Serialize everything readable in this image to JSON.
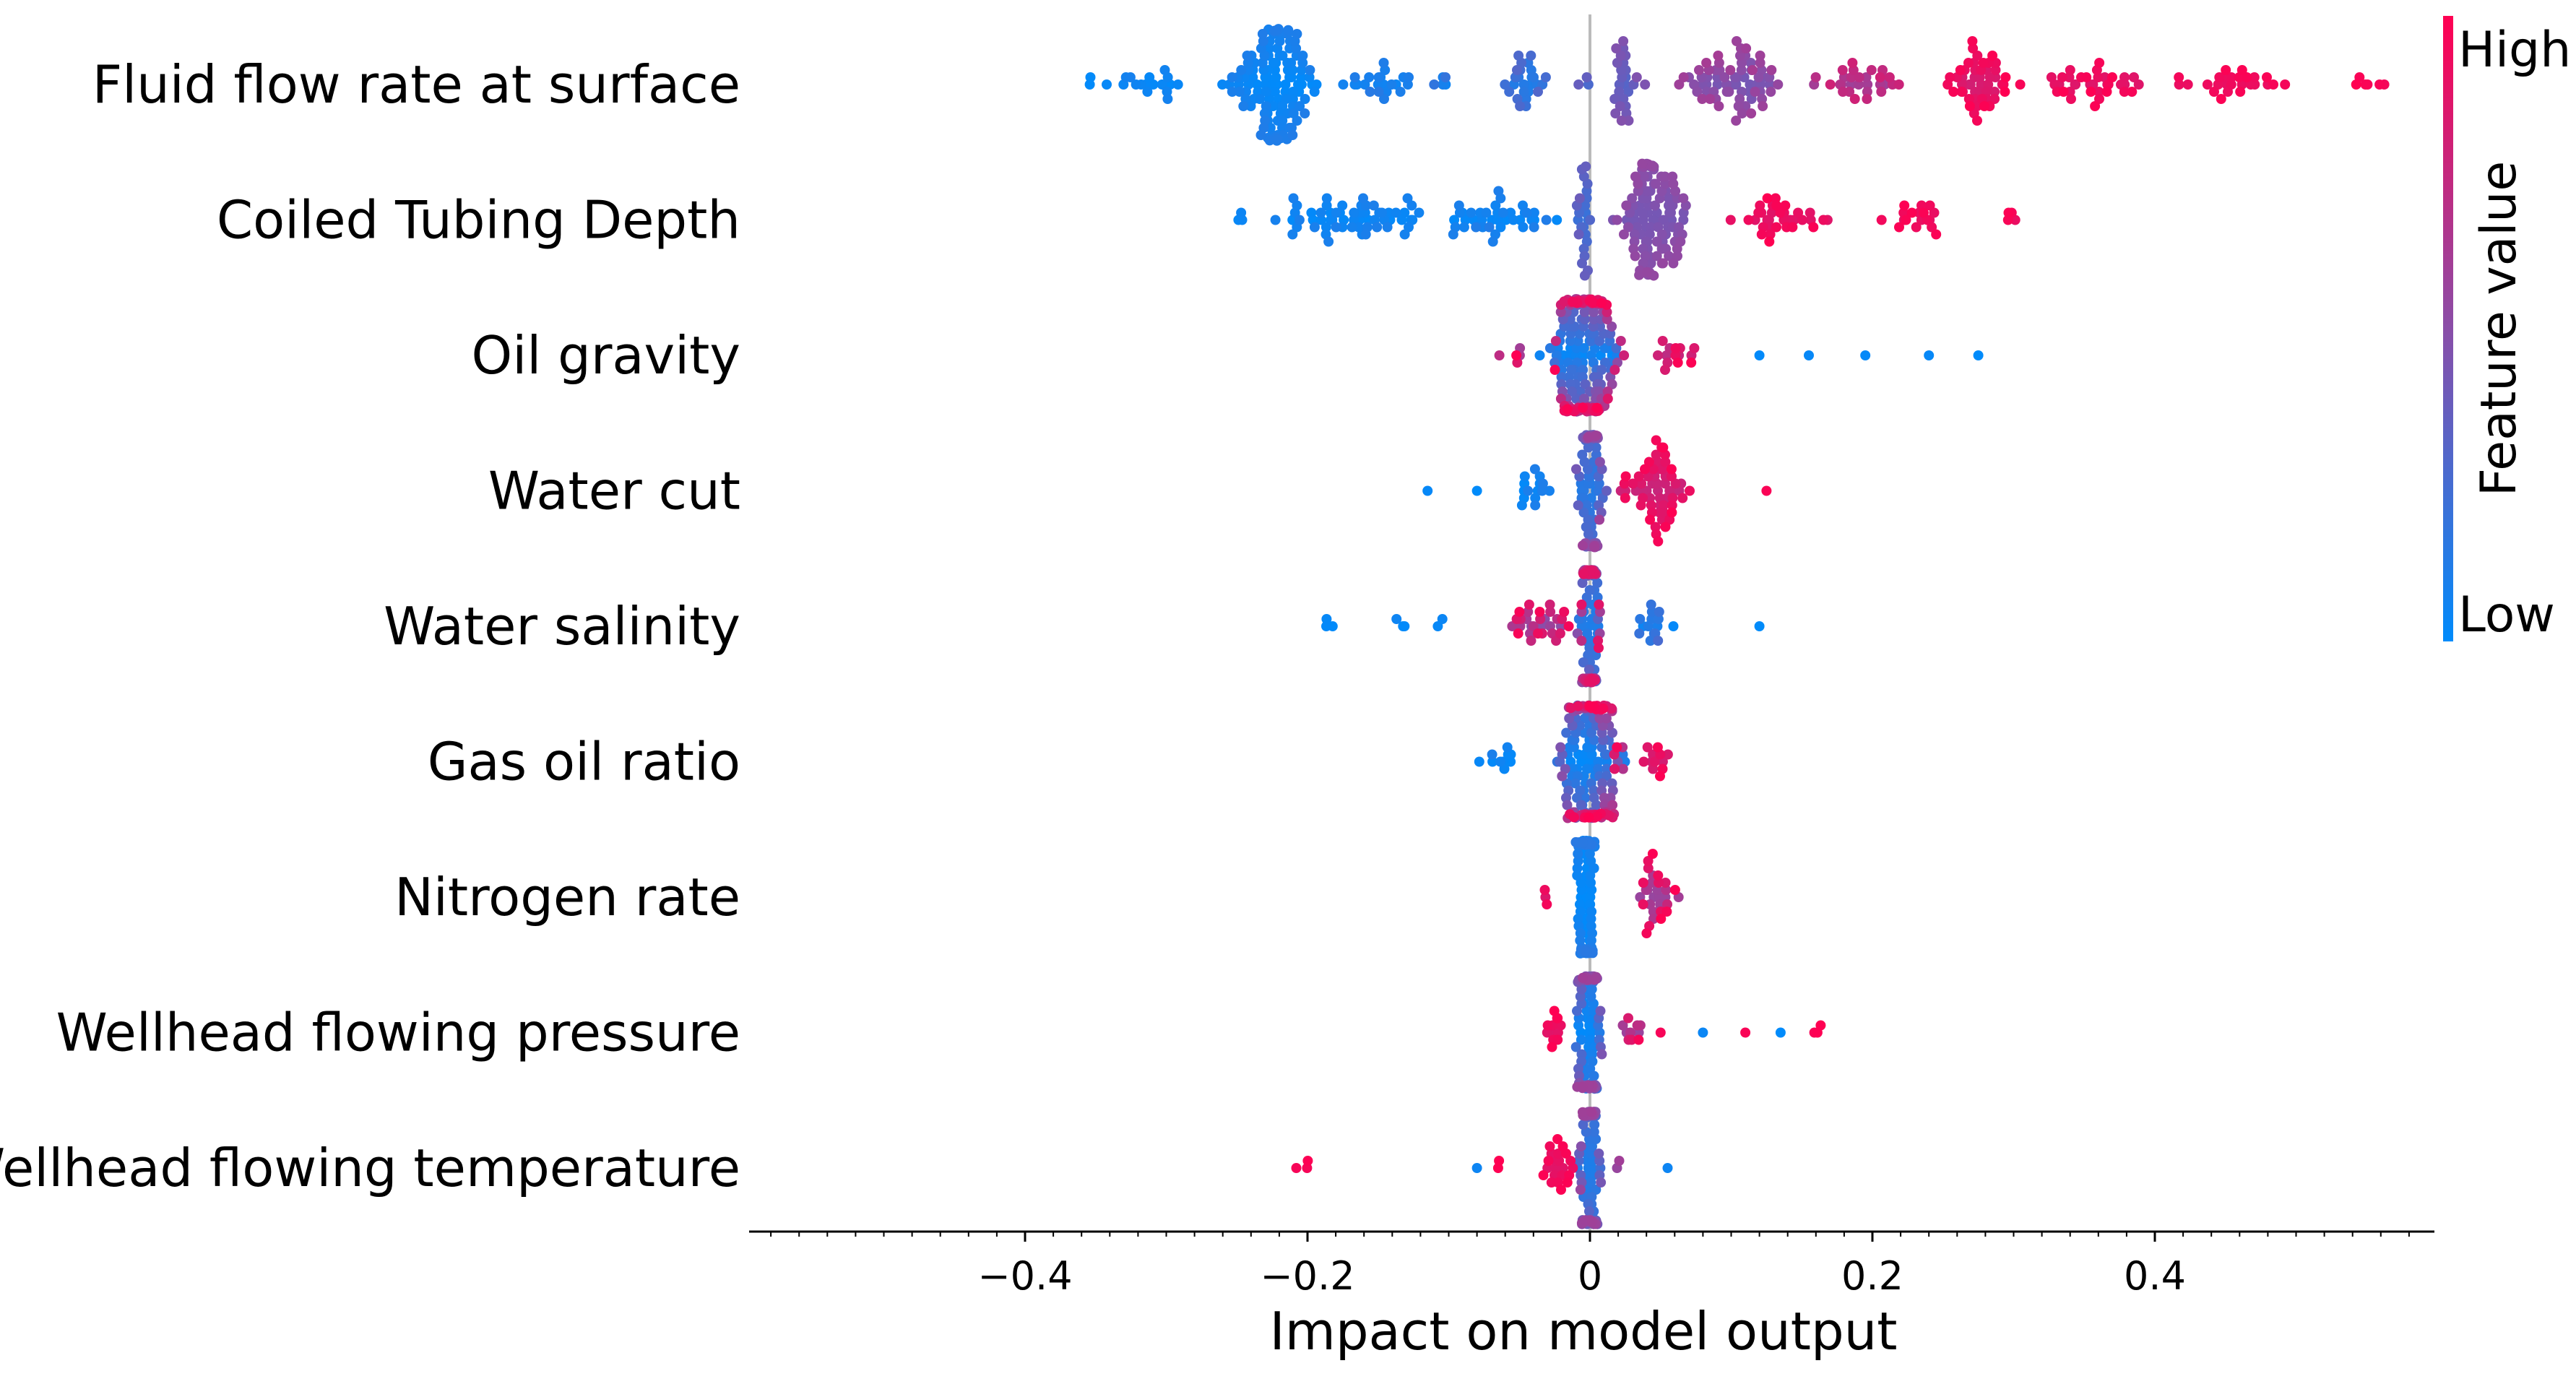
{
  "chart_data": {
    "type": "scatter",
    "subtype": "shap-beeswarm",
    "title": "",
    "xlabel": "Impact on model output",
    "ylabel": "",
    "xlim": [
      -0.6,
      0.6
    ],
    "xticks": [
      {
        "value": -0.4,
        "label": "−0.4"
      },
      {
        "value": -0.2,
        "label": "−0.2"
      },
      {
        "value": 0,
        "label": "0"
      },
      {
        "value": 0.2,
        "label": "0.2"
      },
      {
        "value": 0.4,
        "label": "0.4"
      }
    ],
    "grid": false,
    "zero_line": true,
    "colorbar": {
      "title": "Feature value",
      "high_label": "High",
      "low_label": "Low",
      "high_color": "#ff0052",
      "mid_color": "#8a4ea8",
      "low_color": "#008bfb"
    },
    "features": [
      {
        "name": "Fluid flow rate at surface",
        "clusters": [
          {
            "center": -0.35,
            "spread": 0.006,
            "count": 3,
            "low": 0.0,
            "high": 0.05
          },
          {
            "center": -0.31,
            "spread": 0.02,
            "count": 16,
            "low": 0.0,
            "high": 0.08
          },
          {
            "center": -0.225,
            "spread": 0.028,
            "count": 130,
            "low": 0.0,
            "high": 0.12
          },
          {
            "center": -0.15,
            "spread": 0.02,
            "count": 22,
            "low": 0.02,
            "high": 0.15
          },
          {
            "center": -0.105,
            "spread": 0.01,
            "count": 5,
            "low": 0.05,
            "high": 0.2
          },
          {
            "center": -0.045,
            "spread": 0.016,
            "count": 26,
            "low": 0.1,
            "high": 0.3
          },
          {
            "center": 0.0,
            "spread": 0.01,
            "count": 3,
            "low": 0.25,
            "high": 0.4
          },
          {
            "center": 0.025,
            "spread": 0.01,
            "count": 26,
            "low": 0.3,
            "high": 0.48
          },
          {
            "center": 0.1,
            "spread": 0.03,
            "count": 70,
            "low": 0.42,
            "high": 0.62
          },
          {
            "center": 0.19,
            "spread": 0.03,
            "count": 30,
            "low": 0.58,
            "high": 0.8
          },
          {
            "center": 0.275,
            "spread": 0.018,
            "count": 50,
            "low": 0.8,
            "high": 1.0
          },
          {
            "center": 0.35,
            "spread": 0.035,
            "count": 36,
            "low": 0.85,
            "high": 1.0
          },
          {
            "center": 0.46,
            "spread": 0.035,
            "count": 26,
            "low": 0.9,
            "high": 1.0
          },
          {
            "center": 0.55,
            "spread": 0.01,
            "count": 6,
            "low": 0.95,
            "high": 1.0
          }
        ]
      },
      {
        "name": "Coiled Tubing Depth",
        "clusters": [
          {
            "center": -0.245,
            "spread": 0.006,
            "count": 3,
            "low": 0.0,
            "high": 0.05
          },
          {
            "center": -0.17,
            "spread": 0.045,
            "count": 60,
            "low": 0.0,
            "high": 0.1
          },
          {
            "center": -0.065,
            "spread": 0.03,
            "count": 40,
            "low": 0.0,
            "high": 0.12
          },
          {
            "center": -0.005,
            "spread": 0.006,
            "count": 24,
            "low": 0.2,
            "high": 0.4
          },
          {
            "center": 0.045,
            "spread": 0.02,
            "count": 110,
            "low": 0.42,
            "high": 0.55
          },
          {
            "center": 0.14,
            "spread": 0.035,
            "count": 34,
            "low": 0.85,
            "high": 1.0
          },
          {
            "center": 0.235,
            "spread": 0.025,
            "count": 18,
            "low": 0.88,
            "high": 1.0
          },
          {
            "center": 0.3,
            "spread": 0.007,
            "count": 4,
            "low": 0.9,
            "high": 1.0
          }
        ]
      },
      {
        "name": "Oil gravity",
        "clusters": [
          {
            "center": -0.004,
            "spread": 0.022,
            "count": 200,
            "low": 0.0,
            "high": 1.0
          },
          {
            "center": 0.06,
            "spread": 0.015,
            "count": 14,
            "low": 0.7,
            "high": 1.0
          },
          {
            "center": -0.055,
            "spread": 0.008,
            "count": 5,
            "low": 0.5,
            "high": 1.0
          },
          {
            "center": 0.12,
            "spread": 0.0,
            "count": 1,
            "low": 0.0,
            "high": 0.05
          },
          {
            "center": 0.155,
            "spread": 0.0,
            "count": 1,
            "low": 0.0,
            "high": 0.05
          },
          {
            "center": 0.195,
            "spread": 0.0,
            "count": 1,
            "low": 0.0,
            "high": 0.05
          },
          {
            "center": 0.24,
            "spread": 0.0,
            "count": 1,
            "low": 0.0,
            "high": 0.05
          },
          {
            "center": 0.275,
            "spread": 0.0,
            "count": 1,
            "low": 0.0,
            "high": 0.05
          }
        ]
      },
      {
        "name": "Water cut ",
        "clusters": [
          {
            "center": -0.115,
            "spread": 0.0,
            "count": 1,
            "low": 0.0,
            "high": 0.05
          },
          {
            "center": -0.08,
            "spread": 0.0,
            "count": 1,
            "low": 0.0,
            "high": 0.05
          },
          {
            "center": -0.04,
            "spread": 0.012,
            "count": 15,
            "low": 0.0,
            "high": 0.12
          },
          {
            "center": 0.0,
            "spread": 0.008,
            "count": 95,
            "low": 0.1,
            "high": 0.6
          },
          {
            "center": 0.045,
            "spread": 0.022,
            "count": 60,
            "low": 0.75,
            "high": 1.0
          },
          {
            "center": 0.125,
            "spread": 0.0,
            "count": 1,
            "low": 0.95,
            "high": 1.0
          }
        ]
      },
      {
        "name": "Water salinity",
        "clusters": [
          {
            "center": -0.185,
            "spread": 0.004,
            "count": 3,
            "low": 0.0,
            "high": 0.05
          },
          {
            "center": -0.135,
            "spread": 0.008,
            "count": 3,
            "low": 0.0,
            "high": 0.05
          },
          {
            "center": -0.105,
            "spread": 0.005,
            "count": 2,
            "low": 0.0,
            "high": 0.05
          },
          {
            "center": -0.035,
            "spread": 0.018,
            "count": 30,
            "low": 0.5,
            "high": 1.0
          },
          {
            "center": 0.0,
            "spread": 0.007,
            "count": 120,
            "low": 0.1,
            "high": 0.9
          },
          {
            "center": 0.045,
            "spread": 0.012,
            "count": 15,
            "low": 0.0,
            "high": 0.3
          },
          {
            "center": 0.12,
            "spread": 0.0,
            "count": 1,
            "low": 0.0,
            "high": 0.05
          }
        ]
      },
      {
        "name": "Gas oil ratio",
        "clusters": [
          {
            "center": -0.065,
            "spread": 0.012,
            "count": 10,
            "low": 0.0,
            "high": 0.1
          },
          {
            "center": 0.0,
            "spread": 0.018,
            "count": 190,
            "low": 0.0,
            "high": 1.0
          },
          {
            "center": 0.045,
            "spread": 0.01,
            "count": 12,
            "low": 0.75,
            "high": 1.0
          }
        ]
      },
      {
        "name": "Nitrogen rate",
        "clusters": [
          {
            "center": -0.03,
            "spread": 0.003,
            "count": 3,
            "low": 0.8,
            "high": 1.0
          },
          {
            "center": -0.003,
            "spread": 0.005,
            "count": 160,
            "low": 0.0,
            "high": 0.15
          },
          {
            "center": 0.045,
            "spread": 0.015,
            "count": 30,
            "low": 0.55,
            "high": 1.0
          }
        ]
      },
      {
        "name": "Wellhead flowing pressure",
        "clusters": [
          {
            "center": -0.025,
            "spread": 0.008,
            "count": 12,
            "low": 0.85,
            "high": 1.0
          },
          {
            "center": 0.0,
            "spread": 0.007,
            "count": 130,
            "low": 0.0,
            "high": 0.6
          },
          {
            "center": 0.03,
            "spread": 0.008,
            "count": 10,
            "low": 0.3,
            "high": 1.0
          },
          {
            "center": 0.05,
            "spread": 0.0,
            "count": 1,
            "low": 0.95,
            "high": 1.0
          },
          {
            "center": 0.08,
            "spread": 0.0,
            "count": 1,
            "low": 0.0,
            "high": 0.05
          },
          {
            "center": 0.11,
            "spread": 0.0,
            "count": 1,
            "low": 0.95,
            "high": 1.0
          },
          {
            "center": 0.135,
            "spread": 0.0,
            "count": 1,
            "low": 0.0,
            "high": 0.05
          },
          {
            "center": 0.16,
            "spread": 0.005,
            "count": 3,
            "low": 0.95,
            "high": 1.0
          }
        ]
      },
      {
        "name": "Wellhead flowing temperature",
        "clusters": [
          {
            "center": -0.205,
            "spread": 0.004,
            "count": 3,
            "low": 0.95,
            "high": 1.0
          },
          {
            "center": -0.08,
            "spread": 0.0,
            "count": 1,
            "low": 0.0,
            "high": 0.05
          },
          {
            "center": -0.065,
            "spread": 0.003,
            "count": 2,
            "low": 0.95,
            "high": 1.0
          },
          {
            "center": -0.025,
            "spread": 0.01,
            "count": 22,
            "low": 0.85,
            "high": 1.0
          },
          {
            "center": 0.0,
            "spread": 0.006,
            "count": 120,
            "low": 0.1,
            "high": 0.6
          },
          {
            "center": 0.02,
            "spread": 0.002,
            "count": 2,
            "low": 0.4,
            "high": 0.6
          },
          {
            "center": 0.055,
            "spread": 0.0,
            "count": 1,
            "low": 0.0,
            "high": 0.05
          }
        ]
      }
    ]
  }
}
